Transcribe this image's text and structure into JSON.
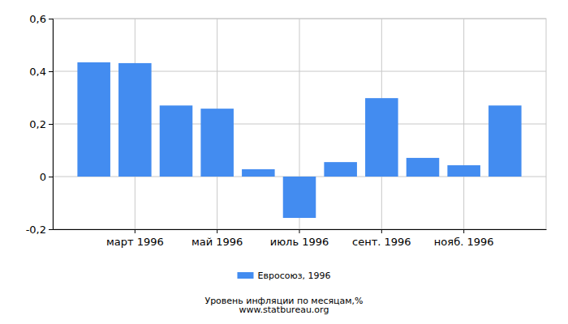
{
  "chart_data": {
    "type": "bar",
    "title": "Уровень инфляции по месяцам,%",
    "subtitle": "www.statbureau.org",
    "categories": [
      null,
      "март 1996",
      null,
      "май 1996",
      null,
      "июль 1996",
      null,
      "сент. 1996",
      null,
      "нояб. 1996",
      null
    ],
    "series": [
      {
        "name": "Евросоюз, 1996",
        "color": "#438cf0",
        "values": [
          0.434,
          0.431,
          0.27,
          0.258,
          0.028,
          -0.157,
          0.055,
          0.298,
          0.071,
          0.043,
          0.27
        ]
      }
    ],
    "ylim": [
      -0.2,
      0.6
    ],
    "yticks": [
      {
        "value": -0.2,
        "label": "-0,2"
      },
      {
        "value": 0,
        "label": "0"
      },
      {
        "value": 0.2,
        "label": "0,2"
      },
      {
        "value": 0.4,
        "label": "0,4"
      },
      {
        "value": 0.6,
        "label": "0,6"
      }
    ],
    "grid": true,
    "legend": "bottom"
  }
}
